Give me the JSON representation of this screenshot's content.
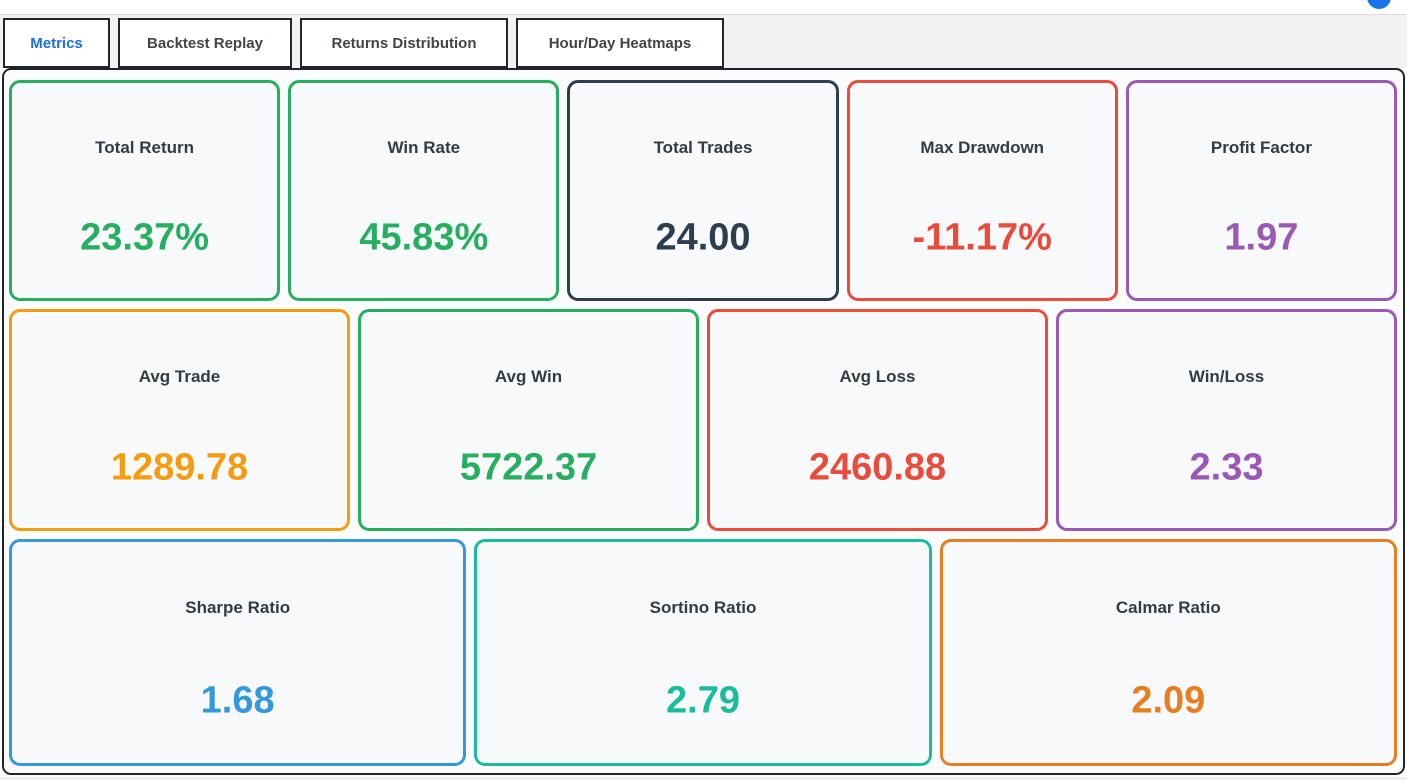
{
  "app": {
    "status_icon_color": "#1a73e8"
  },
  "tabs": [
    {
      "label": "Metrics",
      "active": true
    },
    {
      "label": "Backtest Replay",
      "active": false
    },
    {
      "label": "Returns Distribution",
      "active": false
    },
    {
      "label": "Hour/Day Heatmaps",
      "active": false
    }
  ],
  "metrics": {
    "rows": [
      {
        "cards": [
          {
            "label": "Total Return",
            "value": "23.37%",
            "color": "#27ae60"
          },
          {
            "label": "Win Rate",
            "value": "45.83%",
            "color": "#27ae60"
          },
          {
            "label": "Total Trades",
            "value": "24.00",
            "color": "#2c3e50"
          },
          {
            "label": "Max Drawdown",
            "value": "-11.17%",
            "color": "#e74c3c"
          },
          {
            "label": "Profit Factor",
            "value": "1.97",
            "color": "#9b59b6"
          }
        ]
      },
      {
        "cards": [
          {
            "label": "Avg Trade",
            "value": "1289.78",
            "color": "#f39c12"
          },
          {
            "label": "Avg Win",
            "value": "5722.37",
            "color": "#27ae60"
          },
          {
            "label": "Avg Loss",
            "value": "2460.88",
            "color": "#e74c3c"
          },
          {
            "label": "Win/Loss",
            "value": "2.33",
            "color": "#9b59b6"
          }
        ]
      },
      {
        "cards": [
          {
            "label": "Sharpe Ratio",
            "value": "1.68",
            "color": "#3498db"
          },
          {
            "label": "Sortino Ratio",
            "value": "2.79",
            "color": "#1abc9c"
          },
          {
            "label": "Calmar Ratio",
            "value": "2.09",
            "color": "#e67e22"
          }
        ]
      }
    ]
  }
}
